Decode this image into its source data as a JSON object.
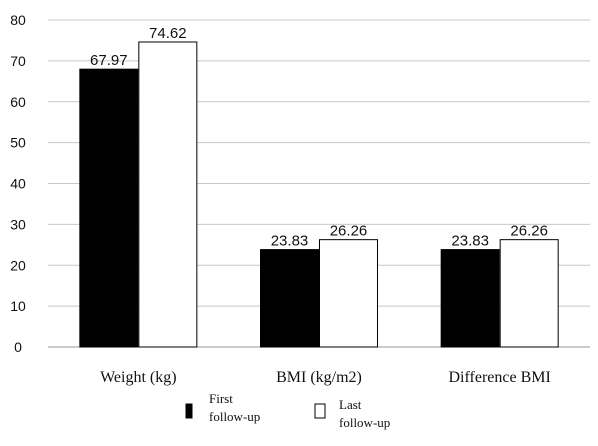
{
  "chart_data": {
    "type": "bar",
    "title": "",
    "xlabel": "",
    "ylabel": "",
    "categories": [
      "Weight (kg)",
      "BMI (kg/m2)",
      "Difference BMI"
    ],
    "series": [
      {
        "name": "First follow-up",
        "name_lines": [
          "First",
          "follow-up"
        ],
        "values": [
          67.97,
          23.83,
          23.83
        ],
        "labels": [
          "67.97",
          "23.83",
          "23.83"
        ],
        "fill": "#000000"
      },
      {
        "name": "Last follow-up",
        "name_lines": [
          "Last",
          "follow-up"
        ],
        "values": [
          74.62,
          26.26,
          26.26
        ],
        "labels": [
          "74.62",
          "26.26",
          "26.26"
        ],
        "fill": "#ffffff"
      }
    ],
    "ylim": [
      0,
      80
    ],
    "yticks": [
      0,
      10,
      20,
      30,
      40,
      50,
      60,
      70,
      80
    ],
    "grid": true,
    "legend": "bottom",
    "colors": {
      "grid": "#c8c8c8",
      "axis": "#9a9a9a",
      "bar_stroke": "#000000",
      "text": "#111111"
    }
  }
}
